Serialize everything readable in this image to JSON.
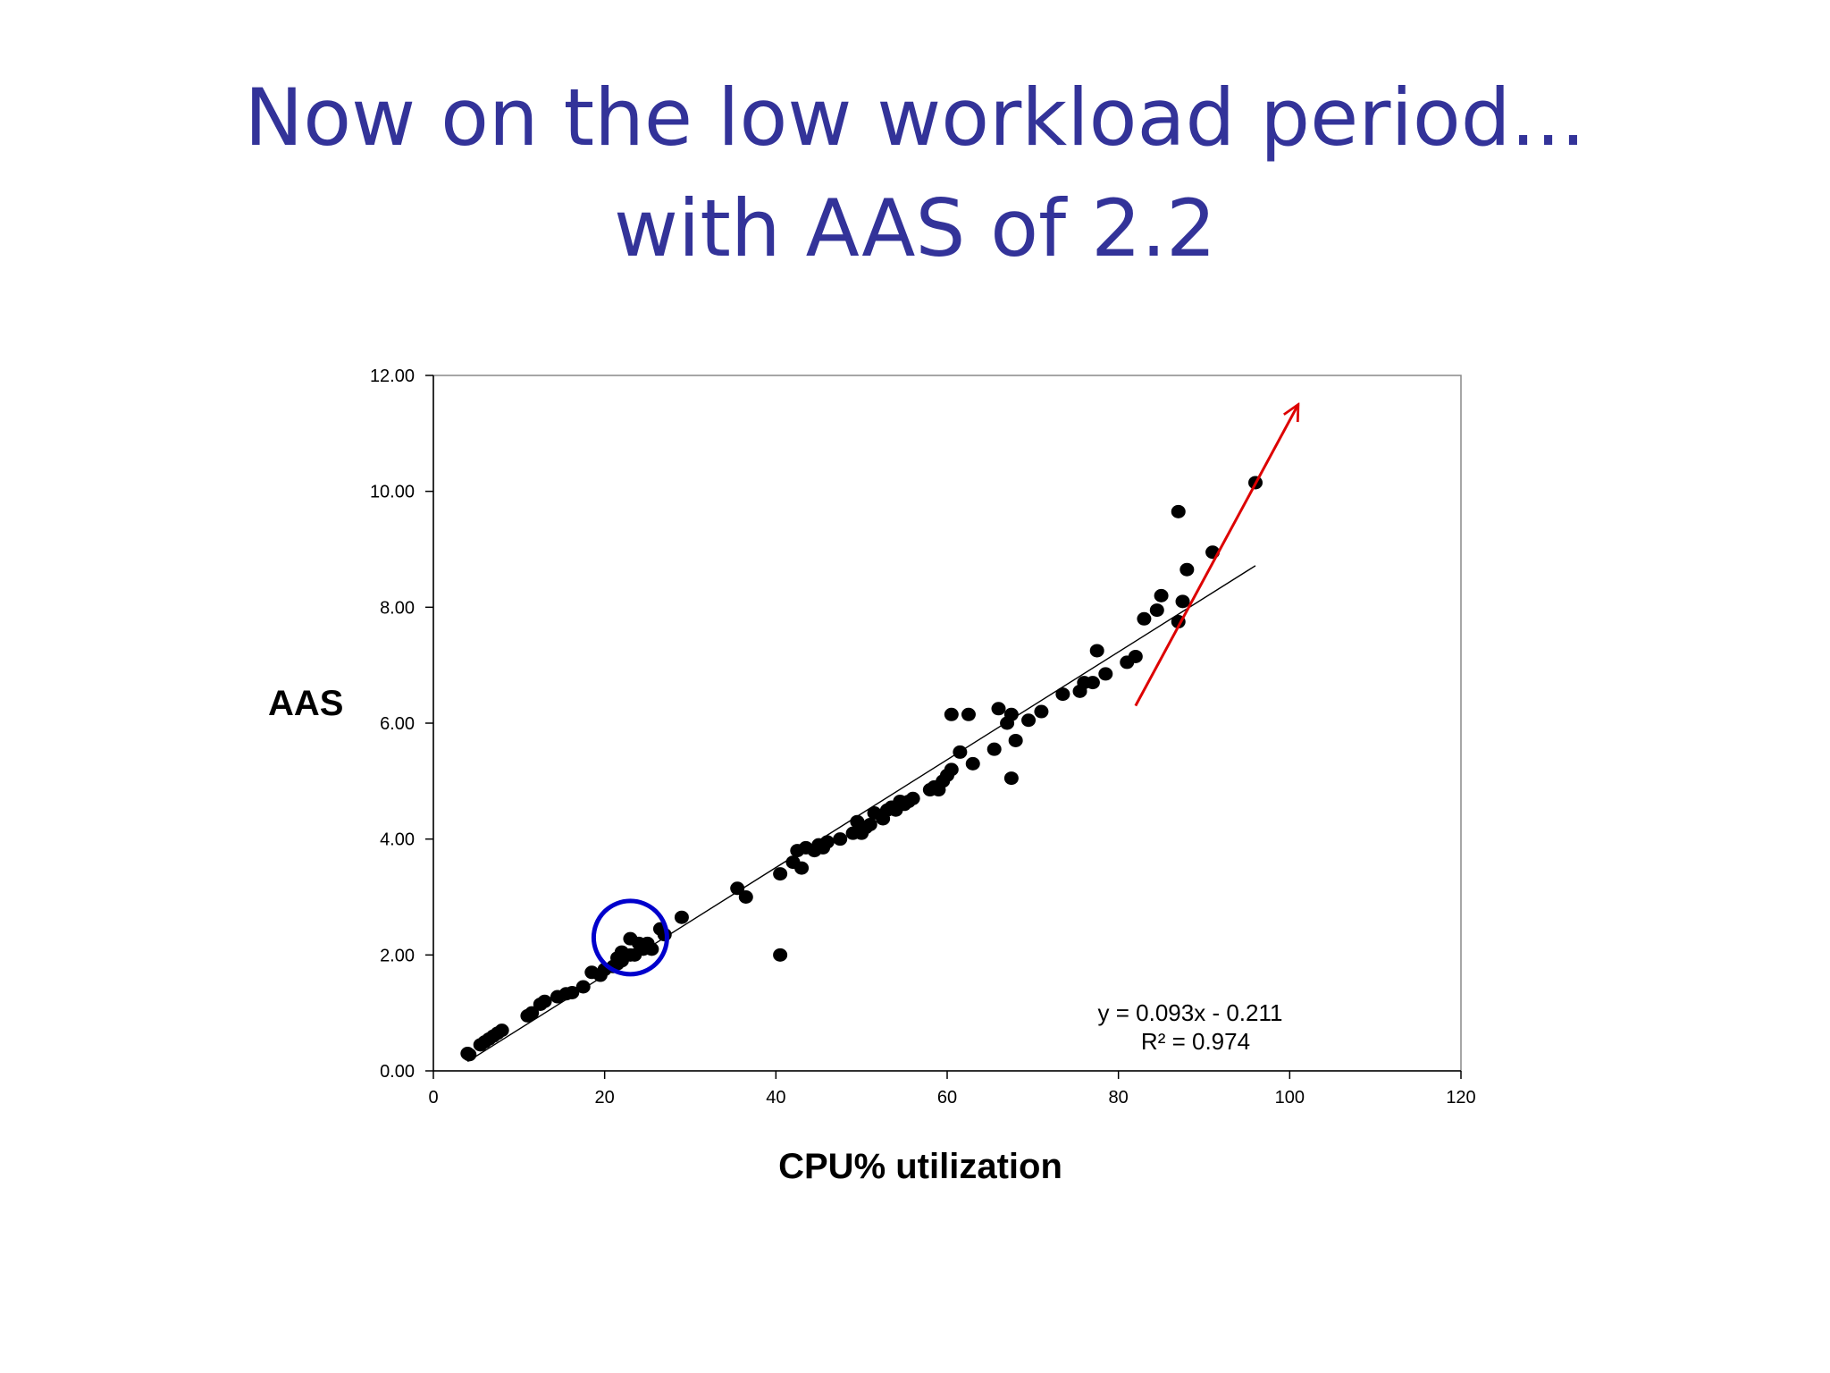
{
  "slide": {
    "title_line1": "Now on the low workload period...",
    "title_line2": "with AAS of 2.2",
    "title_color": "#333399"
  },
  "chart_data": {
    "type": "scatter",
    "xlabel": "CPU% utilization",
    "ylabel": "AAS",
    "xlim": [
      0,
      120
    ],
    "ylim": [
      0,
      12
    ],
    "x_ticks": [
      0,
      20,
      40,
      60,
      80,
      100,
      120
    ],
    "y_ticks": [
      0,
      2,
      4,
      6,
      8,
      10,
      12
    ],
    "x_tick_labels": [
      "0",
      "20",
      "40",
      "60",
      "80",
      "100",
      "120"
    ],
    "y_tick_labels": [
      "0.00",
      "2.00",
      "4.00",
      "6.00",
      "8.00",
      "10.00",
      "12.00"
    ],
    "grid": false,
    "point_color": "#000000",
    "trendline": {
      "slope": 0.093,
      "intercept": -0.211,
      "x_range": [
        4,
        96
      ],
      "equation": "y = 0.093x - 0.211",
      "r_squared": "R² = 0.974",
      "color": "#000000"
    },
    "annotations": {
      "circle": {
        "center": [
          23,
          2.3
        ],
        "color": "#0000cc"
      },
      "arrow": {
        "from": [
          82,
          6.3
        ],
        "to": [
          101,
          11.5
        ],
        "color": "#dd0000"
      }
    },
    "points": [
      [
        4,
        0.3
      ],
      [
        4.2,
        0.28
      ],
      [
        5.5,
        0.45
      ],
      [
        6,
        0.5
      ],
      [
        6.5,
        0.55
      ],
      [
        7,
        0.6
      ],
      [
        7.5,
        0.65
      ],
      [
        8,
        0.7
      ],
      [
        11,
        0.95
      ],
      [
        11.5,
        1.0
      ],
      [
        12.5,
        1.15
      ],
      [
        13,
        1.2
      ],
      [
        14.5,
        1.28
      ],
      [
        15.5,
        1.33
      ],
      [
        16.2,
        1.35
      ],
      [
        17.5,
        1.45
      ],
      [
        18.5,
        1.7
      ],
      [
        19.5,
        1.65
      ],
      [
        20,
        1.75
      ],
      [
        21,
        1.8
      ],
      [
        21.5,
        1.85
      ],
      [
        21.5,
        1.95
      ],
      [
        22,
        1.9
      ],
      [
        22,
        2.05
      ],
      [
        23,
        2.0
      ],
      [
        23,
        2.28
      ],
      [
        23.5,
        2.0
      ],
      [
        24,
        2.2
      ],
      [
        24.5,
        2.1
      ],
      [
        25,
        2.2
      ],
      [
        25.5,
        2.1
      ],
      [
        26.5,
        2.45
      ],
      [
        27,
        2.35
      ],
      [
        29,
        2.65
      ],
      [
        35.5,
        3.15
      ],
      [
        36.5,
        3.0
      ],
      [
        40.5,
        2.0
      ],
      [
        40.5,
        3.4
      ],
      [
        42,
        3.6
      ],
      [
        42.5,
        3.8
      ],
      [
        43,
        3.5
      ],
      [
        43.5,
        3.85
      ],
      [
        44.5,
        3.8
      ],
      [
        45,
        3.9
      ],
      [
        45.5,
        3.85
      ],
      [
        46,
        3.95
      ],
      [
        47.5,
        4.0
      ],
      [
        49,
        4.1
      ],
      [
        49.5,
        4.3
      ],
      [
        50,
        4.1
      ],
      [
        50.5,
        4.2
      ],
      [
        51,
        4.25
      ],
      [
        51.5,
        4.45
      ],
      [
        52.5,
        4.35
      ],
      [
        53,
        4.5
      ],
      [
        53.5,
        4.55
      ],
      [
        54,
        4.5
      ],
      [
        54.5,
        4.65
      ],
      [
        55,
        4.6
      ],
      [
        55.5,
        4.65
      ],
      [
        56,
        4.7
      ],
      [
        58,
        4.85
      ],
      [
        58.5,
        4.9
      ],
      [
        59,
        4.85
      ],
      [
        59.5,
        5.0
      ],
      [
        60,
        5.1
      ],
      [
        60.5,
        5.2
      ],
      [
        60.5,
        6.15
      ],
      [
        61.5,
        5.5
      ],
      [
        62.5,
        6.15
      ],
      [
        63,
        5.3
      ],
      [
        65.5,
        5.55
      ],
      [
        66,
        6.25
      ],
      [
        67,
        6.0
      ],
      [
        67.5,
        6.15
      ],
      [
        67.5,
        5.05
      ],
      [
        68,
        5.7
      ],
      [
        69.5,
        6.05
      ],
      [
        71,
        6.2
      ],
      [
        73.5,
        6.5
      ],
      [
        75.5,
        6.55
      ],
      [
        76,
        6.7
      ],
      [
        77,
        6.7
      ],
      [
        77.5,
        7.25
      ],
      [
        78.5,
        6.85
      ],
      [
        81,
        7.05
      ],
      [
        82,
        7.15
      ],
      [
        83,
        7.8
      ],
      [
        84.5,
        7.95
      ],
      [
        85,
        8.2
      ],
      [
        87,
        7.75
      ],
      [
        87,
        9.65
      ],
      [
        87.5,
        8.1
      ],
      [
        88,
        8.65
      ],
      [
        91,
        8.95
      ],
      [
        96,
        10.15
      ]
    ]
  }
}
